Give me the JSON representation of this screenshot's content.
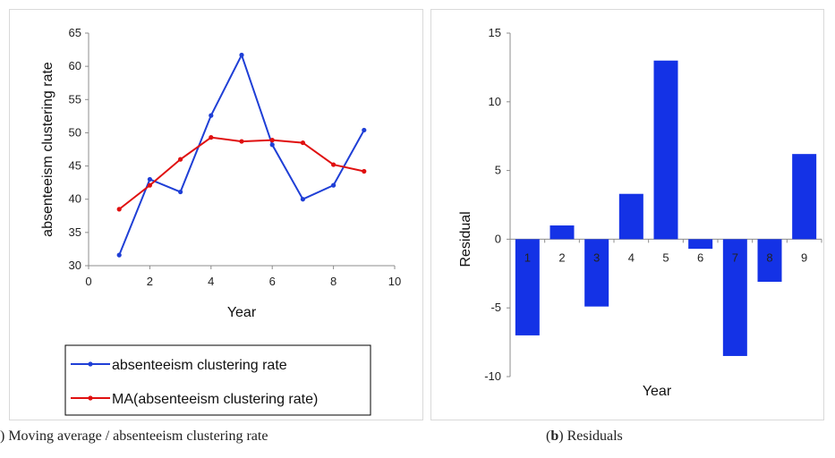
{
  "chart_data": [
    {
      "type": "line",
      "xlabel": "Year",
      "ylabel": "absenteeism clustering rate",
      "xlim": [
        0,
        10
      ],
      "ylim": [
        30,
        65
      ],
      "xticks": [
        "0",
        "2",
        "4",
        "6",
        "8",
        "10"
      ],
      "yticks": [
        "30",
        "35",
        "40",
        "45",
        "50",
        "55",
        "60",
        "65"
      ],
      "x": [
        1,
        2,
        3,
        4,
        5,
        6,
        7,
        8,
        9
      ],
      "series": [
        {
          "name": "absenteeism clustering rate",
          "color": "#1f3fd6",
          "values": [
            31.6,
            43.0,
            41.1,
            52.6,
            61.7,
            48.2,
            40.0,
            42.1,
            50.4
          ]
        },
        {
          "name": "MA(absenteeism clustering rate)",
          "color": "#e01010",
          "values": [
            38.5,
            42.1,
            46.0,
            49.3,
            48.7,
            48.9,
            48.5,
            45.2,
            44.2
          ]
        }
      ],
      "legend": "bottom",
      "grid": false
    },
    {
      "type": "bar",
      "xlabel": "Year",
      "ylabel": "Residual",
      "ylim": [
        -10,
        15
      ],
      "yticks": [
        "-10",
        "-5",
        "0",
        "5",
        "10",
        "15"
      ],
      "categories": [
        "1",
        "2",
        "3",
        "4",
        "5",
        "6",
        "7",
        "8",
        "9"
      ],
      "values": [
        -7.0,
        1.0,
        -4.9,
        3.3,
        13.0,
        -0.7,
        -8.5,
        -3.1,
        6.2
      ],
      "color": "#1432e6",
      "grid": false
    }
  ],
  "captions": {
    "a": ") Moving average / absenteeism clustering rate",
    "b_prefix": "(",
    "b_letter": "b",
    "b_suffix": ") Residuals"
  }
}
